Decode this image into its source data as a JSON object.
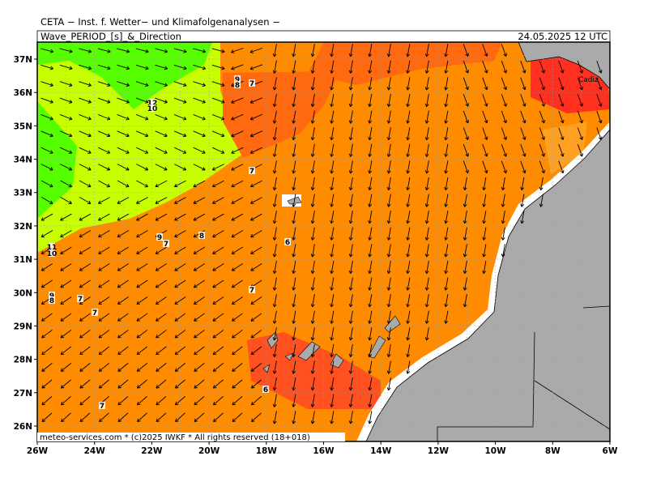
{
  "header": {
    "title": "CETA − Inst. f. Wetter− und Klimafolgenanalysen −",
    "subtitle": "Wave_PERIOD_[s]_&_Direction",
    "datetime": "24.05.2025 12 UTC"
  },
  "axes": {
    "lat_labels": [
      "37N",
      "36N",
      "35N",
      "34N",
      "33N",
      "32N",
      "31N",
      "30N",
      "29N",
      "28N",
      "27N",
      "26N"
    ],
    "lon_labels": [
      "26W",
      "24W",
      "22W",
      "20W",
      "18W",
      "16W",
      "14W",
      "12W",
      "10W",
      "8W",
      "6W"
    ]
  },
  "contour_labels": [
    "9",
    "8",
    "7",
    "12",
    "10",
    "7",
    "9",
    "7",
    "8",
    "6",
    "11",
    "10",
    "9",
    "8",
    "7",
    "7",
    "7",
    "6",
    "7"
  ],
  "places": [
    "Cadiz"
  ],
  "footer": "meteo-services.com * (c)2025 IWKF * All rights reserved (18+018)"
}
